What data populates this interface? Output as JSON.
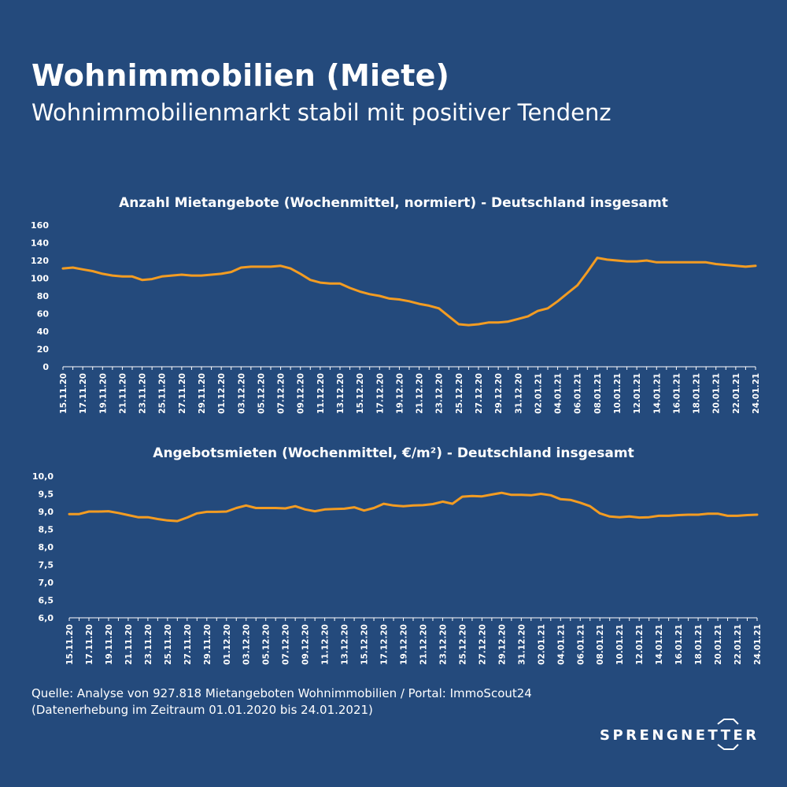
{
  "header": {
    "title": "Wohnimmobilien (Miete)",
    "subtitle": "Wohnimmobilienmarkt stabil mit positiver Tendenz"
  },
  "source": {
    "line1": "Quelle: Analyse von 927.818 Mietangeboten Wohnimmobilien / Portal: ImmoScout24",
    "line2": "(Datenerhebung im Zeitraum 01.01.2020 bis  24.01.2021)"
  },
  "logo": {
    "text": "SPRENGNETTER"
  },
  "colors": {
    "background": "#244a7c",
    "line": "#f39c22",
    "text": "#ffffff"
  },
  "chart_data": [
    {
      "type": "line",
      "title": "Anzahl Mietangebote (Wochenmittel, normiert) - Deutschland insgesamt",
      "x_tick_labels": [
        "15.11.20",
        "17.11.20",
        "19.11.20",
        "21.11.20",
        "23.11.20",
        "25.11.20",
        "27.11.20",
        "29.11.20",
        "01.12.20",
        "03.12.20",
        "05.12.20",
        "07.12.20",
        "09.12.20",
        "11.12.20",
        "13.12.20",
        "15.12.20",
        "17.12.20",
        "19.12.20",
        "21.12.20",
        "23.12.20",
        "25.12.20",
        "27.12.20",
        "29.12.20",
        "31.12.20",
        "02.01.21",
        "04.01.21",
        "06.01.21",
        "08.01.21",
        "10.01.21",
        "12.01.21",
        "14.01.21",
        "16.01.21",
        "18.01.21",
        "20.01.21",
        "22.01.21",
        "24.01.21"
      ],
      "x_start": "15.11.20",
      "x_end": "24.01.21",
      "values": [
        111,
        112,
        110,
        108,
        105,
        103,
        102,
        102,
        98,
        99,
        102,
        103,
        104,
        103,
        103,
        104,
        105,
        107,
        112,
        113,
        113,
        113,
        114,
        111,
        105,
        98,
        95,
        94,
        94,
        89,
        85,
        82,
        80,
        77,
        76,
        74,
        71,
        69,
        66,
        57,
        48,
        47,
        48,
        50,
        50,
        51,
        54,
        57,
        63,
        66,
        74,
        83,
        92,
        107,
        123,
        121,
        120,
        119,
        119,
        120,
        118,
        118,
        118,
        118,
        118,
        118,
        116,
        115,
        114,
        113,
        114
      ],
      "y_ticks": [
        "0",
        "20",
        "40",
        "60",
        "80",
        "100",
        "120",
        "140",
        "160"
      ],
      "ylim": [
        0,
        160
      ]
    },
    {
      "type": "line",
      "title": "Angebotsmieten (Wochenmittel, €/m²) - Deutschland insgesamt",
      "x_tick_labels": [
        "15.11.20",
        "17.11.20",
        "19.11.20",
        "21.11.20",
        "23.11.20",
        "25.11.20",
        "27.11.20",
        "29.11.20",
        "01.12.20",
        "03.12.20",
        "05.12.20",
        "07.12.20",
        "09.12.20",
        "11.12.20",
        "13.12.20",
        "15.12.20",
        "17.12.20",
        "19.12.20",
        "21.12.20",
        "23.12.20",
        "25.12.20",
        "27.12.20",
        "29.12.20",
        "31.12.20",
        "02.01.21",
        "04.01.21",
        "06.01.21",
        "08.01.21",
        "10.01.21",
        "12.01.21",
        "14.01.21",
        "16.01.21",
        "18.01.21",
        "20.01.21",
        "22.01.21",
        "24.01.21"
      ],
      "x_start": "15.11.20",
      "x_end": "24.01.21",
      "values": [
        8.93,
        8.93,
        9.0,
        9.0,
        9.01,
        8.96,
        8.9,
        8.84,
        8.84,
        8.79,
        8.75,
        8.73,
        8.83,
        8.95,
        8.99,
        8.99,
        9.0,
        9.1,
        9.17,
        9.1,
        9.1,
        9.1,
        9.09,
        9.15,
        9.06,
        9.01,
        9.06,
        9.07,
        9.08,
        9.12,
        9.03,
        9.1,
        9.22,
        9.17,
        9.15,
        9.17,
        9.18,
        9.21,
        9.28,
        9.22,
        9.42,
        9.44,
        9.43,
        9.48,
        9.53,
        9.47,
        9.47,
        9.46,
        9.5,
        9.46,
        9.35,
        9.33,
        9.25,
        9.15,
        8.95,
        8.86,
        8.84,
        8.86,
        8.83,
        8.84,
        8.88,
        8.88,
        8.9,
        8.91,
        8.91,
        8.94,
        8.94,
        8.88,
        8.88,
        8.9,
        8.91
      ],
      "y_ticks": [
        "6,0",
        "6,5",
        "7,0",
        "7,5",
        "8,0",
        "8,5",
        "9,0",
        "9,5",
        "10,0"
      ],
      "ylim": [
        6.0,
        10.0
      ]
    }
  ]
}
